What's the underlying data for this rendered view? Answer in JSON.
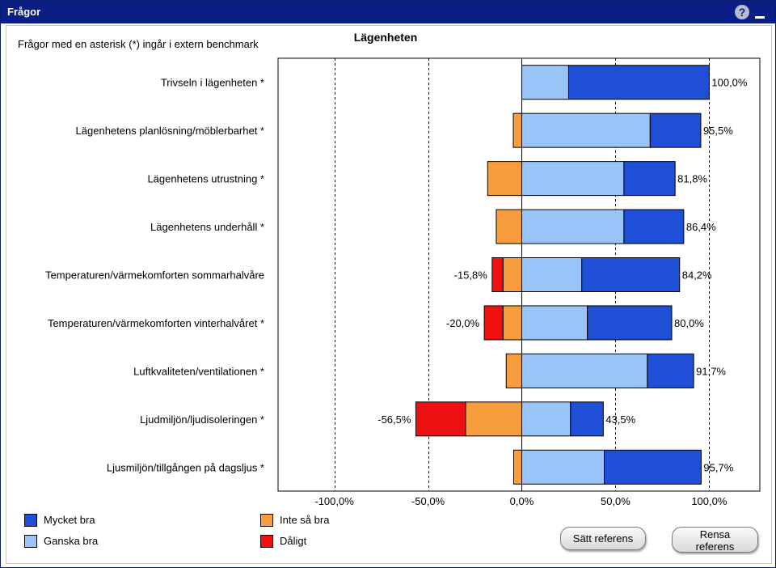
{
  "window": {
    "title": "Frågor"
  },
  "note": "Frågor med en asterisk (*) ingår i extern benchmark",
  "colors": {
    "mycket_bra": "#1f4fd6",
    "ganska_bra": "#99c4f7",
    "inte_sa_bra": "#f79d3d",
    "daligt": "#ee1111"
  },
  "chart_data": {
    "type": "bar",
    "orientation": "horizontal-diverging-stacked",
    "title": "Lägenheten",
    "categories": [
      "Trivseln i lägenheten *",
      "Lägenhetens planlösning/möblerbarhet *",
      "Lägenhetens utrustning *",
      "Lägenhetens underhåll *",
      "Temperaturen/värmekomforten sommarhalvåre",
      "Temperaturen/värmekomforten vinterhalvåret *",
      "Luftkvaliteten/ventilationen *",
      "Ljudmiljön/ljudisoleringen *",
      "Ljusmiljön/tillgången på dagsljus *"
    ],
    "series": [
      {
        "name": "Ganska bra",
        "values": [
          25,
          68.5,
          54.5,
          54.5,
          32,
          35,
          67,
          26,
          44
        ]
      },
      {
        "name": "Mycket bra",
        "values": [
          75,
          27,
          27.3,
          31.9,
          52.2,
          45,
          24.7,
          17.5,
          51.7
        ]
      },
      {
        "name": "Inte så bra",
        "values": [
          0,
          -4.5,
          -18.2,
          -13.6,
          -10,
          -10,
          -8.3,
          -30,
          -4.3
        ]
      },
      {
        "name": "Dåligt",
        "values": [
          0,
          0,
          0,
          0,
          -5.8,
          -10,
          0,
          -26.5,
          0
        ]
      }
    ],
    "positive_totals": [
      "100,0%",
      "95,5%",
      "81,8%",
      "86,4%",
      "84,2%",
      "80,0%",
      "91,7%",
      "43,5%",
      "95,7%"
    ],
    "negative_totals": [
      "",
      "",
      "",
      "",
      "-15,8%",
      "-20,0%",
      "",
      "-56,5%",
      ""
    ],
    "x_ticks": [
      "-100,0%",
      "-50,0%",
      "0,0%",
      "50,0%",
      "100,0%"
    ],
    "xlim": [
      -130,
      127
    ],
    "grid": "vertical dashed at ±50% and ±100%",
    "legend_position": "bottom-left"
  },
  "legend": [
    {
      "label": "Mycket bra",
      "color": "#1f4fd6"
    },
    {
      "label": "Ganska bra",
      "color": "#99c4f7"
    },
    {
      "label": "Inte så bra",
      "color": "#f79d3d"
    },
    {
      "label": "Dåligt",
      "color": "#ee1111"
    }
  ],
  "buttons": {
    "set_reference": "Sätt referens",
    "clear_reference_line1": "Rensa",
    "clear_reference_line2": "referens"
  }
}
